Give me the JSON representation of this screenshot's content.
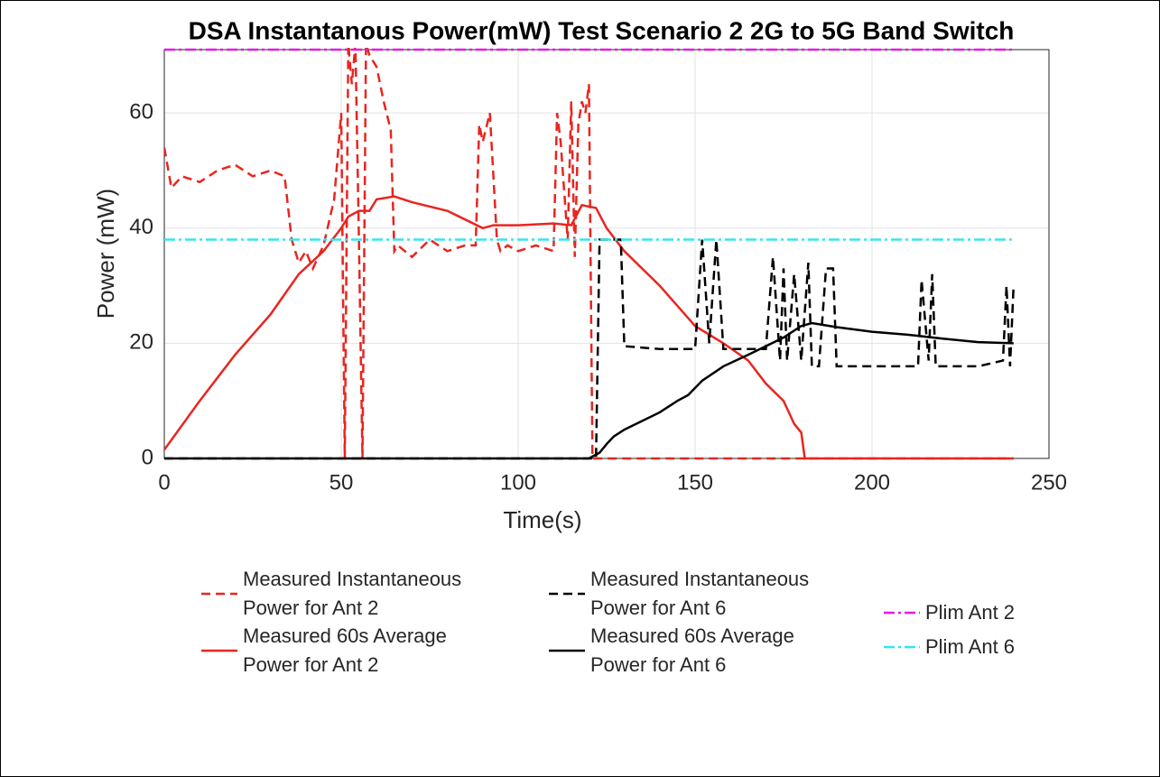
{
  "chart_data": {
    "type": "line",
    "title": "DSA Instantanous Power(mW) Test Scenario 2 2G to 5G Band Switch",
    "xlabel": "Time(s)",
    "ylabel": "Power (mW)",
    "xlim": [
      0,
      250
    ],
    "ylim": [
      0,
      71
    ],
    "xticks": [
      0,
      50,
      100,
      150,
      200,
      250
    ],
    "yticks": [
      0,
      20,
      40,
      60
    ],
    "grid": true,
    "series": [
      {
        "name": "Measured Instantaneous Power for Ant 2",
        "color": "#e8251f",
        "style": "dashed",
        "x": [
          0,
          2,
          5,
          10,
          15,
          20,
          25,
          30,
          34,
          36,
          38,
          40,
          42,
          45,
          48,
          50,
          51,
          52,
          53,
          54,
          55,
          56,
          57,
          58,
          60,
          62,
          64,
          65,
          66,
          70,
          75,
          80,
          85,
          88,
          89,
          90,
          92,
          94,
          95,
          97,
          100,
          105,
          110,
          111,
          112,
          114,
          115,
          116,
          117,
          118,
          119,
          120,
          121,
          122,
          125,
          130,
          240
        ],
        "values": [
          54,
          47,
          49,
          48,
          50,
          51,
          49,
          50,
          49,
          38,
          34,
          36,
          33,
          37,
          45,
          60,
          0,
          72,
          65,
          72,
          38,
          0,
          72,
          70,
          68,
          62,
          57,
          36,
          37,
          35,
          38,
          36,
          37,
          37,
          58,
          55,
          60,
          38,
          36,
          37,
          36,
          37,
          36,
          60,
          55,
          38,
          62,
          35,
          58,
          62,
          60,
          65,
          0,
          0,
          0,
          0,
          0
        ]
      },
      {
        "name": "Measured 60s Average Power for Ant 2",
        "color": "#e8251f",
        "style": "solid",
        "x": [
          0,
          10,
          20,
          30,
          38,
          45,
          50,
          52,
          55,
          58,
          60,
          65,
          70,
          80,
          90,
          93,
          100,
          110,
          115,
          118,
          122,
          125,
          130,
          140,
          150,
          158,
          165,
          170,
          175,
          178,
          180,
          181,
          240
        ],
        "values": [
          1.5,
          10,
          18,
          25,
          32,
          36,
          40,
          42,
          43,
          43,
          45,
          45.5,
          44.5,
          43,
          40,
          40.5,
          40.5,
          40.8,
          40.5,
          44,
          43.5,
          40,
          36,
          30,
          23,
          20,
          17,
          13,
          10,
          6,
          4.5,
          0,
          0
        ]
      },
      {
        "name": "Measured Instantaneous Power for Ant 6",
        "color": "#000000",
        "style": "dashed",
        "x": [
          0,
          120,
          122,
          123,
          126,
          129,
          130,
          140,
          150,
          152,
          154,
          156,
          158,
          170,
          172,
          174,
          175,
          176,
          178,
          180,
          182,
          183,
          185,
          187,
          189,
          190,
          200,
          210,
          213,
          214,
          216,
          217,
          218,
          225,
          230,
          237,
          238,
          239,
          240
        ],
        "values": [
          0,
          0,
          0,
          38,
          38,
          38,
          19.5,
          19,
          19,
          38,
          20,
          38,
          19,
          19,
          35,
          17,
          33,
          17,
          32,
          17,
          34,
          16,
          16,
          33,
          33,
          16,
          16,
          16,
          16,
          31,
          17,
          32,
          16,
          16,
          16,
          17,
          30,
          16,
          30
        ]
      },
      {
        "name": "Measured 60s Average Power for Ant 6",
        "color": "#000000",
        "style": "solid",
        "x": [
          0,
          120,
          123,
          125,
          127,
          130,
          140,
          145,
          148,
          152,
          158,
          165,
          170,
          175,
          180,
          183,
          190,
          200,
          210,
          220,
          230,
          240
        ],
        "values": [
          0,
          0,
          1,
          2.5,
          3.8,
          5,
          8,
          10,
          11,
          13.5,
          16,
          18,
          19.5,
          21,
          23,
          23.5,
          22.8,
          22,
          21.5,
          20.8,
          20.2,
          20
        ]
      },
      {
        "name": "Plim Ant 2",
        "color": "#e619e6",
        "style": "dashdot",
        "x": [
          0,
          240
        ],
        "values": [
          71,
          71
        ]
      },
      {
        "name": "Plim Ant 6",
        "color": "#33e6f0",
        "style": "dashdot",
        "x": [
          0,
          240
        ],
        "values": [
          38,
          38
        ]
      }
    ]
  }
}
